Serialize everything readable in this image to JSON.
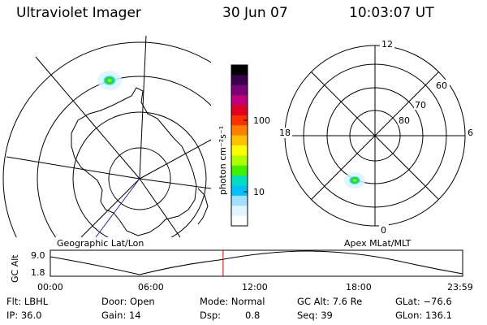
{
  "header": {
    "instrument": "Ultraviolet Imager",
    "date": "30 Jun 07",
    "time": "10:03:07 UT"
  },
  "left_panel": {
    "caption": "Geographic Lat/Lon"
  },
  "right_panel": {
    "caption": "Apex MLat/MLT",
    "mlt_labels": {
      "top": "12",
      "bottom": "0",
      "left": "18",
      "right": "6"
    },
    "lat_labels": [
      "60",
      "70",
      "80"
    ]
  },
  "colorbar": {
    "unit_label": "photon cm⁻²s⁻¹",
    "tick_labels": [
      "100",
      "10"
    ],
    "colors": [
      "#000000",
      "#3a0050",
      "#7a0078",
      "#c0007a",
      "#e00020",
      "#ff3000",
      "#ff8000",
      "#ffc000",
      "#ffff00",
      "#b0ff00",
      "#40f000",
      "#00e0c0",
      "#00c0ff",
      "#a0e0ff",
      "#e0f6ff",
      "#ffffff"
    ]
  },
  "altitude_plot": {
    "ylabel": "GC Alt",
    "ytick_labels": [
      "9.0",
      "1.8"
    ],
    "xtick_labels": [
      "00:00",
      "06:00",
      "12:00",
      "18:00",
      "23:59"
    ],
    "marker_time": "10:03",
    "marker_color": "#cc0000"
  },
  "info": {
    "row1": {
      "filter": "Flt: LBHL",
      "door": "Door: Open",
      "mode": "Mode: Normal",
      "gc_alt": "GC Alt: 7.6 Re",
      "glat": "GLat: −76.6"
    },
    "row2": {
      "ip": "IP: 36.0",
      "gain": "Gain: 14",
      "dsp_label": "Dsp:",
      "dsp_value": "0.8",
      "seq": "Seq: 39",
      "glon": "GLon: 136.1"
    }
  }
}
